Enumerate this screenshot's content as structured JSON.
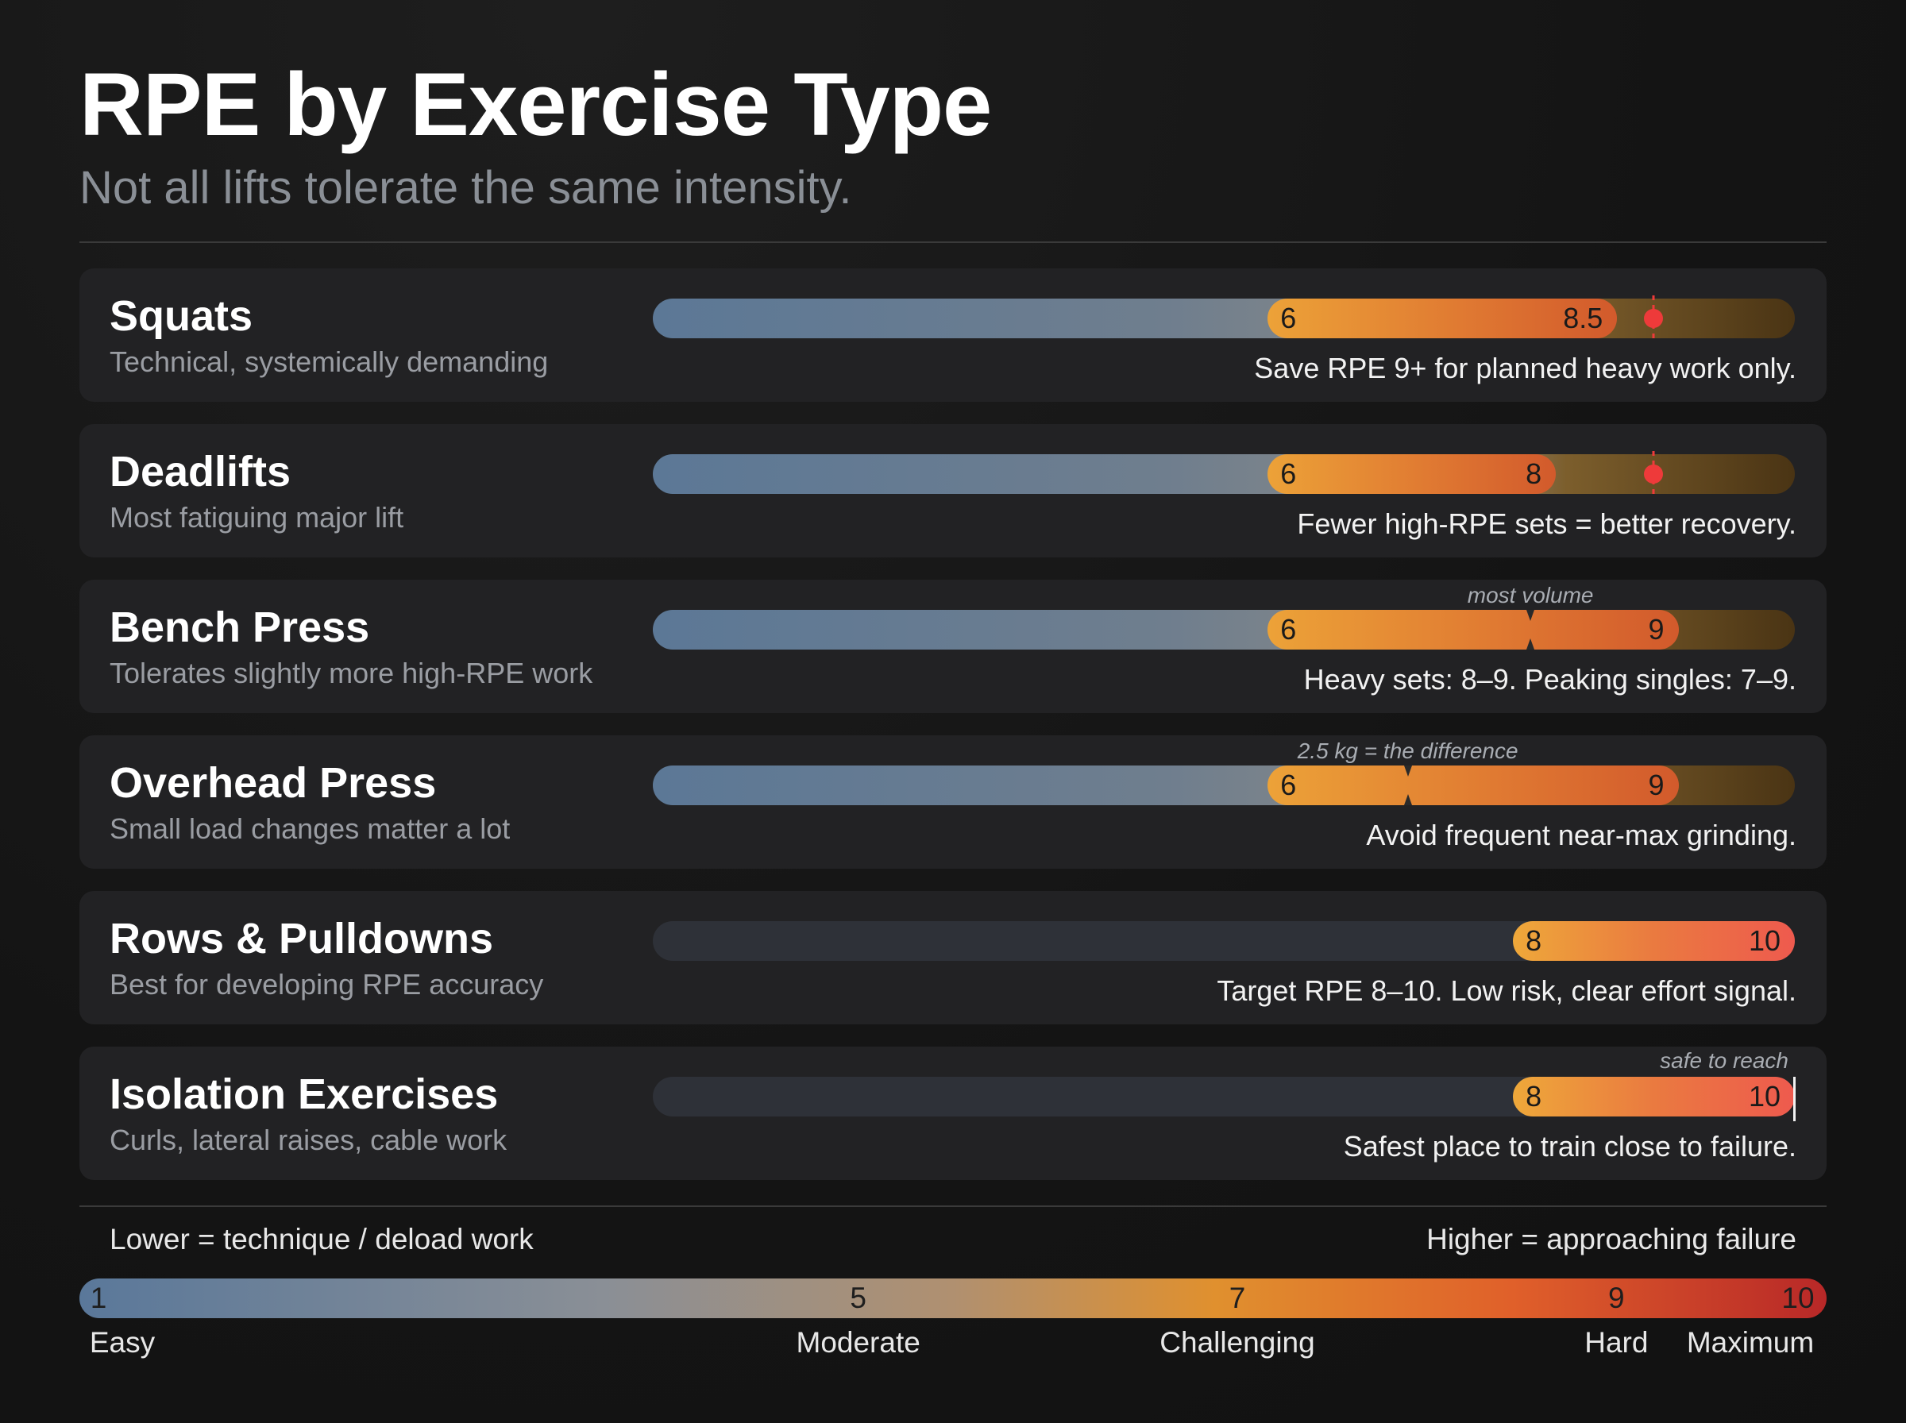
{
  "title": "RPE by Exercise Type",
  "subtitle": "Not all lifts tolerate the same intensity.",
  "chart_data": {
    "type": "bar",
    "orientation": "horizontal-range",
    "axis_range": [
      1,
      10
    ],
    "categories": [
      "Squats",
      "Deadlifts",
      "Bench Press",
      "Overhead Press",
      "Rows & Pulldowns",
      "Isolation Exercises"
    ],
    "exercises": [
      {
        "name": "Squats",
        "subtitle": "Technical, systemically demanding",
        "low": 6,
        "high": 8.5,
        "low_label": "6",
        "high_label": "8.5",
        "note": "Save RPE 9+ for planned heavy work only.",
        "style": "gradient",
        "marker": {
          "type": "caution",
          "value": 9
        }
      },
      {
        "name": "Deadlifts",
        "subtitle": "Most fatiguing major lift",
        "low": 6,
        "high": 8,
        "low_label": "6",
        "high_label": "8",
        "note": "Fewer high-RPE sets = better recovery.",
        "style": "gradient",
        "marker": {
          "type": "caution",
          "value": 9
        }
      },
      {
        "name": "Bench Press",
        "subtitle": "Tolerates slightly more high-RPE work",
        "low": 6,
        "high": 9,
        "low_label": "6",
        "high_label": "9",
        "note": "Heavy sets: 8–9. Peaking singles: 7–9.",
        "style": "gradient",
        "marker": {
          "type": "tick",
          "value": 8,
          "label": "most volume"
        }
      },
      {
        "name": "Overhead Press",
        "subtitle": "Small load changes matter a lot",
        "low": 6,
        "high": 9,
        "low_label": "6",
        "high_label": "9",
        "note": "Avoid frequent near-max grinding.",
        "style": "gradient",
        "marker": {
          "type": "tick",
          "value": 7,
          "label": "2.5 kg = the difference"
        }
      },
      {
        "name": "Rows & Pulldowns",
        "subtitle": "Best for developing RPE accuracy",
        "low": 8,
        "high": 10,
        "low_label": "8",
        "high_label": "10",
        "note": "Target RPE 8–10. Low risk, clear effort signal.",
        "style": "dark"
      },
      {
        "name": "Isolation Exercises",
        "subtitle": "Curls, lateral raises, cable work",
        "low": 8,
        "high": 10,
        "low_label": "8",
        "high_label": "10",
        "note": "Safest place to train close to failure.",
        "style": "dark",
        "marker": {
          "type": "end",
          "value": 10,
          "label": "safe to reach"
        }
      }
    ],
    "scale": {
      "left_caption": "Lower = technique / deload work",
      "right_caption": "Higher = approaching failure",
      "ticks": [
        {
          "value": 1,
          "label": "1",
          "descriptor": "Easy"
        },
        {
          "value": 5,
          "label": "5",
          "descriptor": "Moderate"
        },
        {
          "value": 7,
          "label": "7",
          "descriptor": "Challenging"
        },
        {
          "value": 9,
          "label": "9",
          "descriptor": "Hard"
        },
        {
          "value": 10,
          "label": "10",
          "descriptor": "Maximum"
        }
      ]
    },
    "colors": {
      "cool": "#5c7896",
      "warm": "#eca238",
      "hot": "#e0602a",
      "max": "#b82828",
      "caution_marker": "#ee3a3a"
    }
  }
}
